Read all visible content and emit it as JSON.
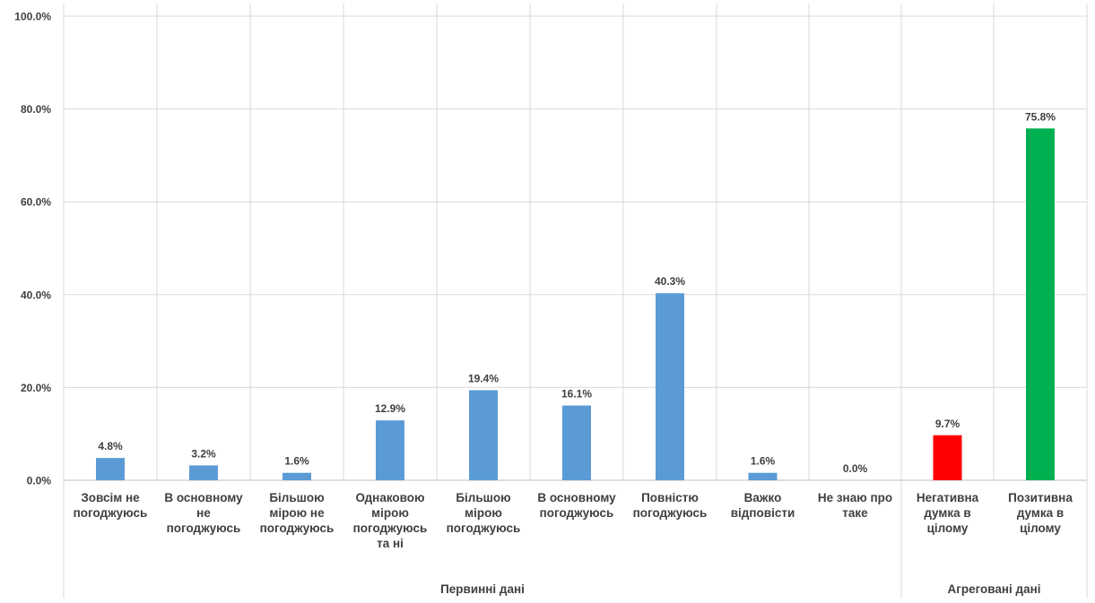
{
  "chart_data": {
    "type": "bar",
    "categories": [
      [
        "Зовсім не",
        "погоджуюсь"
      ],
      [
        "В основному",
        "не",
        "погоджуюсь"
      ],
      [
        "Більшою",
        "мірою не",
        "погоджуюсь"
      ],
      [
        "Однаковою",
        "мірою",
        "погоджуюсь",
        "та ні"
      ],
      [
        "Більшою",
        "мірою",
        "погоджуюсь"
      ],
      [
        "В основному",
        "погоджуюсь"
      ],
      [
        "Повністю",
        "погоджуюсь"
      ],
      [
        "Важко",
        "відповісти"
      ],
      [
        "Не знаю про",
        "таке"
      ],
      [
        "Негативна",
        "думка в",
        "цілому"
      ],
      [
        "Позитивна",
        "думка в",
        "цілому"
      ]
    ],
    "values": [
      4.8,
      3.2,
      1.6,
      12.9,
      19.4,
      16.1,
      40.3,
      1.6,
      0.0,
      9.7,
      75.8
    ],
    "value_labels": [
      "4.8%",
      "3.2%",
      "1.6%",
      "12.9%",
      "19.4%",
      "16.1%",
      "40.3%",
      "1.6%",
      "0.0%",
      "9.7%",
      "75.8%"
    ],
    "bar_colors": [
      "#5B9BD5",
      "#5B9BD5",
      "#5B9BD5",
      "#5B9BD5",
      "#5B9BD5",
      "#5B9BD5",
      "#5B9BD5",
      "#5B9BD5",
      "#5B9BD5",
      "#FF0000",
      "#00B050"
    ],
    "groups": [
      {
        "label": "Первинні дані",
        "count": 9
      },
      {
        "label": "Агреговані дані",
        "count": 2
      }
    ],
    "y_ticks": [
      "0.0%",
      "20.0%",
      "40.0%",
      "60.0%",
      "80.0%",
      "100.0%"
    ],
    "ylim": [
      0,
      100
    ],
    "grid": true,
    "title": "",
    "xlabel": "",
    "ylabel": ""
  }
}
